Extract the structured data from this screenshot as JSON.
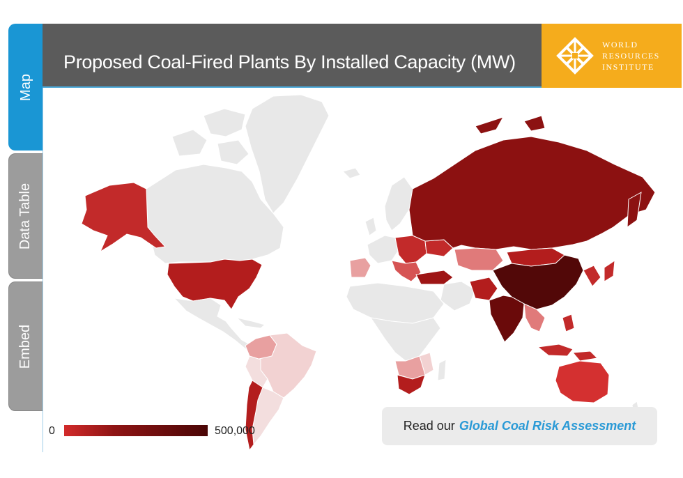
{
  "tabs": [
    {
      "label": "Map",
      "active": true
    },
    {
      "label": "Data Table",
      "active": false
    },
    {
      "label": "Embed",
      "active": false
    }
  ],
  "header": {
    "title": "Proposed Coal-Fired Plants By Installed Capacity (MW)",
    "background_color": "#5b5b5b"
  },
  "brand": {
    "lines": [
      "WORLD",
      "RESOURCES",
      "INSTITUTE"
    ],
    "background_color": "#f5ac1c",
    "icon": "wri-lattice-logo"
  },
  "legend": {
    "min_label": "0",
    "max_label": "500,000",
    "color_low": "#d22a2a",
    "color_high": "#4a0606"
  },
  "cta": {
    "prefix": "Read our",
    "link_text": "Global Coal Risk Assessment",
    "link_color": "#2a9ad6"
  },
  "map": {
    "projection": "world-choropleth",
    "no_data_color": "#e8e8e8"
  }
}
